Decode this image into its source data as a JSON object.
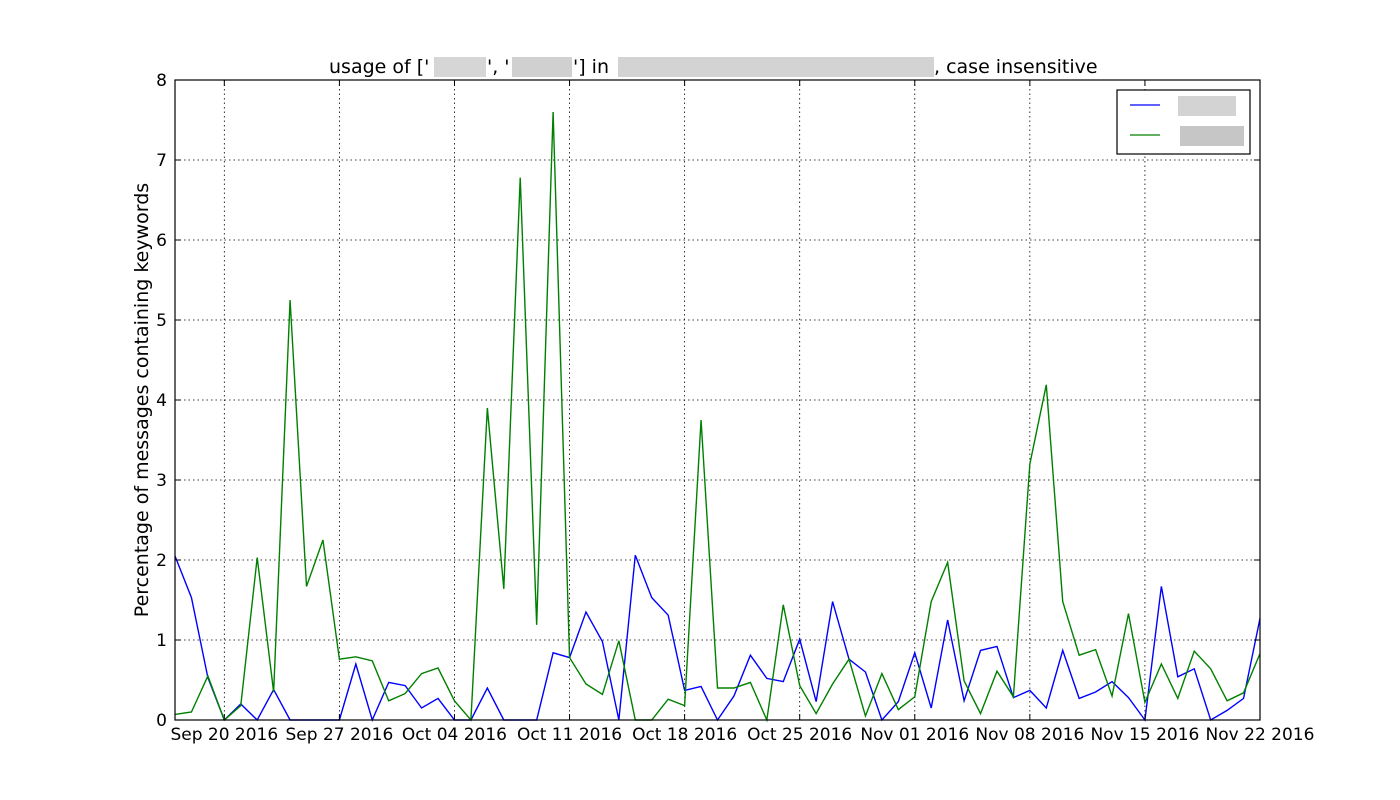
{
  "chart_data": {
    "type": "line",
    "title_prefix": "usage of ['",
    "title_sep": "', '",
    "title_mid": "'] in ",
    "title_suffix": ", case insensitive",
    "ylabel": "Percentage of messages containing keywords",
    "xlabel": "",
    "ylim": [
      0,
      8
    ],
    "xlim": [
      "2016-09-17",
      "2016-11-22"
    ],
    "y_ticks": [
      0,
      1,
      2,
      3,
      4,
      5,
      6,
      7,
      8
    ],
    "x_ticks": [
      {
        "date": "2016-09-20",
        "label": "Sep 20 2016"
      },
      {
        "date": "2016-09-27",
        "label": "Sep 27 2016"
      },
      {
        "date": "2016-10-04",
        "label": "Oct 04 2016"
      },
      {
        "date": "2016-10-11",
        "label": "Oct 11 2016"
      },
      {
        "date": "2016-10-18",
        "label": "Oct 18 2016"
      },
      {
        "date": "2016-10-25",
        "label": "Oct 25 2016"
      },
      {
        "date": "2016-11-01",
        "label": "Nov 01 2016"
      },
      {
        "date": "2016-11-08",
        "label": "Nov 08 2016"
      },
      {
        "date": "2016-11-15",
        "label": "Nov 15 2016"
      },
      {
        "date": "2016-11-22",
        "label": "Nov 22 2016"
      }
    ],
    "grid": true,
    "legend_position": "top-right",
    "x": [
      "2016-09-17",
      "2016-09-18",
      "2016-09-19",
      "2016-09-20",
      "2016-09-21",
      "2016-09-22",
      "2016-09-23",
      "2016-09-24",
      "2016-09-25",
      "2016-09-26",
      "2016-09-27",
      "2016-09-28",
      "2016-09-29",
      "2016-09-30",
      "2016-10-01",
      "2016-10-02",
      "2016-10-03",
      "2016-10-04",
      "2016-10-05",
      "2016-10-06",
      "2016-10-07",
      "2016-10-08",
      "2016-10-09",
      "2016-10-10",
      "2016-10-11",
      "2016-10-12",
      "2016-10-13",
      "2016-10-14",
      "2016-10-15",
      "2016-10-16",
      "2016-10-17",
      "2016-10-18",
      "2016-10-19",
      "2016-10-20",
      "2016-10-21",
      "2016-10-22",
      "2016-10-23",
      "2016-10-24",
      "2016-10-25",
      "2016-10-26",
      "2016-10-27",
      "2016-10-28",
      "2016-10-29",
      "2016-10-30",
      "2016-10-31",
      "2016-11-01",
      "2016-11-02",
      "2016-11-03",
      "2016-11-04",
      "2016-11-05",
      "2016-11-06",
      "2016-11-07",
      "2016-11-08",
      "2016-11-09",
      "2016-11-10",
      "2016-11-11",
      "2016-11-12",
      "2016-11-13",
      "2016-11-14",
      "2016-11-15",
      "2016-11-16",
      "2016-11-17",
      "2016-11-18",
      "2016-11-19",
      "2016-11-20",
      "2016-11-21",
      "2016-11-22"
    ],
    "series": [
      {
        "color": "#0000ff",
        "values": [
          2.05,
          1.53,
          0.53,
          0.0,
          0.2,
          0.0,
          0.38,
          0.0,
          0.0,
          0.0,
          0.0,
          0.7,
          0.0,
          0.47,
          0.43,
          0.15,
          0.27,
          0.0,
          0.0,
          0.4,
          0.0,
          0.0,
          0.0,
          0.84,
          0.78,
          1.35,
          0.98,
          0.0,
          2.06,
          1.53,
          1.31,
          0.37,
          0.42,
          0.0,
          0.3,
          0.81,
          0.52,
          0.48,
          1.01,
          0.23,
          1.48,
          0.76,
          0.6,
          0.0,
          0.23,
          0.84,
          0.15,
          1.25,
          0.24,
          0.87,
          0.92,
          0.28,
          0.37,
          0.15,
          0.87,
          0.27,
          0.35,
          0.48,
          0.28,
          0.0,
          1.67,
          0.54,
          0.64,
          0.0,
          0.12,
          0.27,
          1.27
        ]
      },
      {
        "color": "#008000",
        "values": [
          0.07,
          0.1,
          0.55,
          0.0,
          0.18,
          2.03,
          0.35,
          5.25,
          1.67,
          2.25,
          0.76,
          0.79,
          0.74,
          0.24,
          0.33,
          0.58,
          0.65,
          0.24,
          0.0,
          3.9,
          1.64,
          6.78,
          1.19,
          7.6,
          0.78,
          0.45,
          0.32,
          0.99,
          0.0,
          0.0,
          0.26,
          0.18,
          3.75,
          0.4,
          0.4,
          0.47,
          0.0,
          1.44,
          0.43,
          0.08,
          0.45,
          0.76,
          0.05,
          0.58,
          0.13,
          0.29,
          1.48,
          1.97,
          0.49,
          0.08,
          0.61,
          0.29,
          3.2,
          4.19,
          1.48,
          0.81,
          0.88,
          0.3,
          1.33,
          0.22,
          0.7,
          0.27,
          0.86,
          0.64,
          0.24,
          0.34,
          0.83
        ]
      }
    ]
  }
}
